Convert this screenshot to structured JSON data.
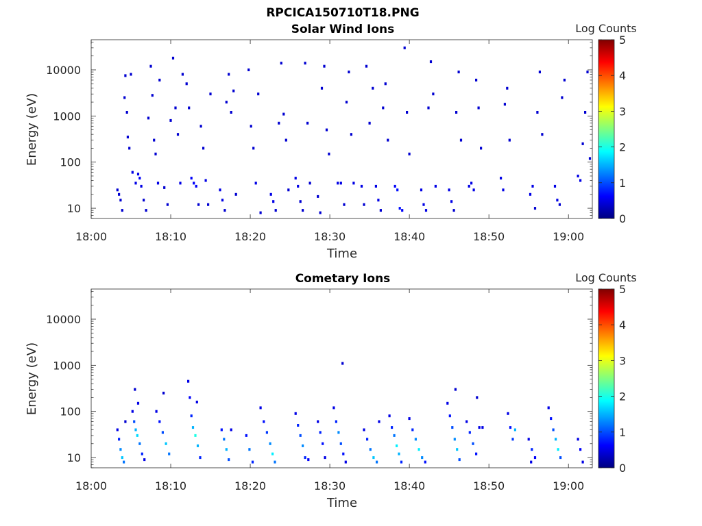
{
  "figure_title": "RPCICA150710T18.PNG",
  "colorbar_defaults": {
    "label": "Log Counts",
    "ticks": [
      0,
      1,
      2,
      3,
      4,
      5
    ]
  },
  "chart_data": [
    {
      "type": "heatmap",
      "title": "Solar Wind Ions",
      "xlabel": "Time",
      "ylabel": "Energy (eV)",
      "x_ticks": [
        "18:00",
        "18:10",
        "18:20",
        "18:30",
        "18:40",
        "18:50",
        "19:00"
      ],
      "y_ticks": [
        "10",
        "100",
        "1000",
        "10000"
      ],
      "y_scale": "log",
      "y_range": [
        6,
        45000
      ],
      "x_range_minutes": [
        0,
        63
      ],
      "colorbar": {
        "label": "Log Counts",
        "range": [
          0,
          5
        ]
      },
      "points": [
        [
          3.3,
          25,
          0.4
        ],
        [
          3.5,
          20,
          0.4
        ],
        [
          3.7,
          15,
          0.4
        ],
        [
          3.9,
          9,
          0.4
        ],
        [
          4.2,
          2500,
          0.4
        ],
        [
          4.3,
          7500,
          0.4
        ],
        [
          4.5,
          1200,
          0.4
        ],
        [
          4.6,
          350,
          0.4
        ],
        [
          4.8,
          200,
          0.4
        ],
        [
          5.0,
          8000,
          0.4
        ],
        [
          5.2,
          60,
          0.5
        ],
        [
          5.6,
          35,
          0.5
        ],
        [
          5.9,
          55,
          0.5
        ],
        [
          6.1,
          45,
          0.6
        ],
        [
          6.3,
          30,
          0.5
        ],
        [
          6.6,
          15,
          0.4
        ],
        [
          6.9,
          9,
          0.4
        ],
        [
          7.2,
          900,
          0.4
        ],
        [
          7.5,
          12000,
          0.4
        ],
        [
          7.7,
          2800,
          0.4
        ],
        [
          7.9,
          300,
          0.4
        ],
        [
          8.1,
          150,
          0.4
        ],
        [
          8.4,
          35,
          0.5
        ],
        [
          8.6,
          6000,
          0.4
        ],
        [
          9.2,
          28,
          0.4
        ],
        [
          9.6,
          12,
          0.4
        ],
        [
          10.0,
          800,
          0.4
        ],
        [
          10.3,
          18000,
          0.4
        ],
        [
          10.6,
          1500,
          0.4
        ],
        [
          10.9,
          400,
          0.4
        ],
        [
          11.2,
          35,
          0.5
        ],
        [
          11.5,
          8000,
          0.4
        ],
        [
          12.0,
          5000,
          0.4
        ],
        [
          12.3,
          1500,
          0.4
        ],
        [
          12.6,
          45,
          0.6
        ],
        [
          12.9,
          35,
          0.6
        ],
        [
          13.2,
          30,
          0.6
        ],
        [
          13.5,
          12,
          0.4
        ],
        [
          13.8,
          600,
          0.4
        ],
        [
          14.1,
          200,
          0.4
        ],
        [
          14.4,
          40,
          0.5
        ],
        [
          14.7,
          12,
          0.4
        ],
        [
          15.0,
          3000,
          0.4
        ],
        [
          16.2,
          25,
          0.5
        ],
        [
          16.5,
          15,
          0.5
        ],
        [
          16.8,
          9,
          0.4
        ],
        [
          17.0,
          2000,
          0.4
        ],
        [
          17.3,
          8000,
          0.4
        ],
        [
          17.6,
          1200,
          0.4
        ],
        [
          17.9,
          3500,
          0.4
        ],
        [
          18.2,
          20,
          0.4
        ],
        [
          19.8,
          10000,
          0.4
        ],
        [
          20.1,
          600,
          0.4
        ],
        [
          20.4,
          200,
          0.4
        ],
        [
          20.7,
          35,
          0.5
        ],
        [
          21.0,
          3000,
          0.4
        ],
        [
          21.3,
          8,
          0.4
        ],
        [
          22.6,
          20,
          0.5
        ],
        [
          22.9,
          14,
          0.5
        ],
        [
          23.2,
          9,
          0.4
        ],
        [
          23.6,
          700,
          0.4
        ],
        [
          23.9,
          14000,
          0.4
        ],
        [
          24.2,
          1100,
          0.4
        ],
        [
          24.5,
          300,
          0.4
        ],
        [
          24.8,
          25,
          0.4
        ],
        [
          25.7,
          45,
          0.5
        ],
        [
          26.0,
          30,
          0.5
        ],
        [
          26.3,
          14,
          0.4
        ],
        [
          26.6,
          9,
          0.4
        ],
        [
          26.9,
          14000,
          0.4
        ],
        [
          27.2,
          700,
          0.4
        ],
        [
          27.5,
          35,
          0.4
        ],
        [
          28.5,
          18,
          0.4
        ],
        [
          28.8,
          8,
          0.4
        ],
        [
          29.0,
          4000,
          0.4
        ],
        [
          29.3,
          12000,
          0.4
        ],
        [
          29.6,
          500,
          0.4
        ],
        [
          29.9,
          150,
          0.4
        ],
        [
          31.0,
          35,
          0.5
        ],
        [
          31.4,
          35,
          0.5
        ],
        [
          31.8,
          12,
          0.4
        ],
        [
          32.1,
          2000,
          0.4
        ],
        [
          32.4,
          9000,
          0.4
        ],
        [
          32.7,
          400,
          0.4
        ],
        [
          33.0,
          35,
          0.5
        ],
        [
          34.0,
          30,
          0.5
        ],
        [
          34.3,
          12,
          0.4
        ],
        [
          34.6,
          12000,
          0.4
        ],
        [
          35.0,
          700,
          0.4
        ],
        [
          35.4,
          4000,
          0.4
        ],
        [
          35.8,
          30,
          0.5
        ],
        [
          36.1,
          15,
          0.5
        ],
        [
          36.4,
          9,
          0.4
        ],
        [
          36.7,
          1500,
          0.4
        ],
        [
          37.0,
          5000,
          0.4
        ],
        [
          37.3,
          300,
          0.4
        ],
        [
          38.2,
          30,
          0.6
        ],
        [
          38.5,
          25,
          0.7
        ],
        [
          38.8,
          10,
          0.7
        ],
        [
          39.1,
          9,
          0.6
        ],
        [
          39.4,
          30000,
          0.4
        ],
        [
          39.7,
          1200,
          0.4
        ],
        [
          40.0,
          150,
          0.4
        ],
        [
          41.5,
          25,
          0.5
        ],
        [
          41.8,
          12,
          0.5
        ],
        [
          42.1,
          9,
          0.5
        ],
        [
          42.4,
          1500,
          0.4
        ],
        [
          42.7,
          15000,
          0.4
        ],
        [
          43.0,
          3000,
          0.4
        ],
        [
          43.3,
          30,
          0.5
        ],
        [
          45.0,
          25,
          0.5
        ],
        [
          45.3,
          14,
          0.5
        ],
        [
          45.6,
          9,
          0.4
        ],
        [
          45.9,
          1200,
          0.4
        ],
        [
          46.2,
          9000,
          0.4
        ],
        [
          46.5,
          300,
          0.4
        ],
        [
          47.5,
          30,
          0.5
        ],
        [
          47.8,
          35,
          0.5
        ],
        [
          48.1,
          25,
          0.5
        ],
        [
          48.4,
          6000,
          0.4
        ],
        [
          48.7,
          1500,
          0.4
        ],
        [
          49.0,
          200,
          0.4
        ],
        [
          51.5,
          45,
          0.5
        ],
        [
          51.8,
          25,
          0.5
        ],
        [
          52.0,
          1800,
          0.4
        ],
        [
          52.3,
          4000,
          0.4
        ],
        [
          52.6,
          300,
          0.4
        ],
        [
          55.2,
          20,
          0.5
        ],
        [
          55.5,
          30,
          0.5
        ],
        [
          55.8,
          10,
          0.4
        ],
        [
          56.1,
          1200,
          0.4
        ],
        [
          56.4,
          9000,
          0.4
        ],
        [
          56.7,
          400,
          0.4
        ],
        [
          58.3,
          30,
          0.5
        ],
        [
          58.6,
          15,
          0.5
        ],
        [
          58.9,
          12,
          0.4
        ],
        [
          59.2,
          2500,
          0.4
        ],
        [
          59.5,
          6000,
          0.4
        ],
        [
          61.2,
          50,
          0.5
        ],
        [
          61.5,
          40,
          0.5
        ],
        [
          61.8,
          250,
          0.4
        ],
        [
          62.1,
          1200,
          0.4
        ],
        [
          62.4,
          9000,
          0.4
        ],
        [
          62.7,
          120,
          0.4
        ]
      ]
    },
    {
      "type": "heatmap",
      "title": "Cometary Ions",
      "xlabel": "Time",
      "ylabel": "Energy (eV)",
      "x_ticks": [
        "18:00",
        "18:10",
        "18:20",
        "18:30",
        "18:40",
        "18:50",
        "19:00"
      ],
      "y_ticks": [
        "10",
        "100",
        "1000",
        "10000"
      ],
      "y_scale": "log",
      "y_range": [
        6,
        45000
      ],
      "x_range_minutes": [
        0,
        63
      ],
      "colorbar": {
        "label": "Log Counts",
        "range": [
          0,
          5
        ]
      },
      "points": [
        [
          3.3,
          40,
          0.5
        ],
        [
          3.5,
          25,
          0.8
        ],
        [
          3.7,
          15,
          1.3
        ],
        [
          3.9,
          10,
          1.6
        ],
        [
          4.1,
          8,
          1.2
        ],
        [
          4.3,
          60,
          0.4
        ],
        [
          5.2,
          100,
          0.5
        ],
        [
          5.4,
          60,
          1.0
        ],
        [
          5.6,
          40,
          1.5
        ],
        [
          5.8,
          30,
          1.7
        ],
        [
          6.1,
          20,
          1.2
        ],
        [
          6.4,
          12,
          0.8
        ],
        [
          6.7,
          9,
          0.5
        ],
        [
          5.5,
          300,
          0.4
        ],
        [
          5.9,
          150,
          0.5
        ],
        [
          8.2,
          100,
          0.5
        ],
        [
          8.6,
          60,
          0.7
        ],
        [
          9.0,
          35,
          1.0
        ],
        [
          9.4,
          20,
          1.6
        ],
        [
          9.8,
          12,
          1.2
        ],
        [
          9.1,
          250,
          0.4
        ],
        [
          12.2,
          450,
          0.5
        ],
        [
          12.4,
          200,
          0.6
        ],
        [
          12.6,
          80,
          0.8
        ],
        [
          12.8,
          45,
          1.5
        ],
        [
          13.1,
          30,
          2.0
        ],
        [
          13.4,
          18,
          1.5
        ],
        [
          13.7,
          10,
          0.8
        ],
        [
          13.3,
          160,
          0.5
        ],
        [
          16.4,
          40,
          0.7
        ],
        [
          16.7,
          25,
          1.2
        ],
        [
          17.0,
          15,
          1.5
        ],
        [
          17.3,
          9,
          1.0
        ],
        [
          17.6,
          40,
          0.5
        ],
        [
          19.5,
          30,
          0.7
        ],
        [
          19.9,
          15,
          1.2
        ],
        [
          20.3,
          8,
          0.8
        ],
        [
          21.3,
          120,
          0.5
        ],
        [
          21.7,
          60,
          0.7
        ],
        [
          22.1,
          35,
          0.9
        ],
        [
          22.5,
          20,
          1.3
        ],
        [
          22.8,
          12,
          1.8
        ],
        [
          23.1,
          8,
          1.2
        ],
        [
          25.7,
          90,
          0.5
        ],
        [
          26.0,
          50,
          0.8
        ],
        [
          26.3,
          30,
          1.0
        ],
        [
          26.6,
          18,
          1.3
        ],
        [
          26.9,
          10,
          0.8
        ],
        [
          27.3,
          9,
          0.6
        ],
        [
          28.5,
          60,
          0.5
        ],
        [
          28.8,
          35,
          0.8
        ],
        [
          29.1,
          20,
          0.7
        ],
        [
          29.4,
          10,
          0.5
        ],
        [
          30.5,
          120,
          0.5
        ],
        [
          30.8,
          60,
          0.8
        ],
        [
          31.1,
          35,
          1.3
        ],
        [
          31.4,
          20,
          1.0
        ],
        [
          31.7,
          12,
          0.7
        ],
        [
          32.0,
          8,
          0.5
        ],
        [
          31.6,
          1100,
          0.4
        ],
        [
          34.3,
          40,
          0.5
        ],
        [
          34.7,
          25,
          0.8
        ],
        [
          35.1,
          15,
          1.2
        ],
        [
          35.5,
          10,
          1.6
        ],
        [
          35.9,
          8,
          1.2
        ],
        [
          36.2,
          60,
          0.5
        ],
        [
          37.5,
          80,
          0.5
        ],
        [
          37.8,
          45,
          0.8
        ],
        [
          38.1,
          30,
          1.2
        ],
        [
          38.4,
          18,
          1.8
        ],
        [
          38.7,
          12,
          1.5
        ],
        [
          39.0,
          8,
          0.8
        ],
        [
          40.0,
          70,
          0.5
        ],
        [
          40.4,
          40,
          0.8
        ],
        [
          40.8,
          25,
          1.3
        ],
        [
          41.2,
          15,
          1.8
        ],
        [
          41.6,
          10,
          1.3
        ],
        [
          42.0,
          8,
          0.7
        ],
        [
          44.8,
          150,
          0.5
        ],
        [
          45.1,
          80,
          0.7
        ],
        [
          45.4,
          45,
          1.0
        ],
        [
          45.7,
          25,
          1.3
        ],
        [
          46.0,
          15,
          1.6
        ],
        [
          46.3,
          9,
          1.0
        ],
        [
          45.8,
          300,
          0.4
        ],
        [
          47.2,
          60,
          0.5
        ],
        [
          47.6,
          35,
          0.8
        ],
        [
          48.0,
          20,
          1.0
        ],
        [
          48.4,
          12,
          0.7
        ],
        [
          48.8,
          45,
          0.5
        ],
        [
          49.2,
          45,
          0.5
        ],
        [
          48.5,
          200,
          0.4
        ],
        [
          52.4,
          90,
          0.5
        ],
        [
          52.7,
          45,
          0.7
        ],
        [
          53.0,
          25,
          0.9
        ],
        [
          53.3,
          40,
          1.5
        ],
        [
          55.0,
          25,
          0.5
        ],
        [
          55.4,
          15,
          0.8
        ],
        [
          55.8,
          10,
          0.6
        ],
        [
          55.3,
          8,
          0.5
        ],
        [
          57.5,
          120,
          0.5
        ],
        [
          57.8,
          70,
          0.7
        ],
        [
          58.1,
          40,
          1.0
        ],
        [
          58.4,
          25,
          1.5
        ],
        [
          58.7,
          15,
          1.8
        ],
        [
          59.0,
          10,
          1.0
        ],
        [
          61.2,
          25,
          0.5
        ],
        [
          61.5,
          15,
          0.6
        ],
        [
          61.8,
          8,
          0.5
        ]
      ]
    }
  ]
}
